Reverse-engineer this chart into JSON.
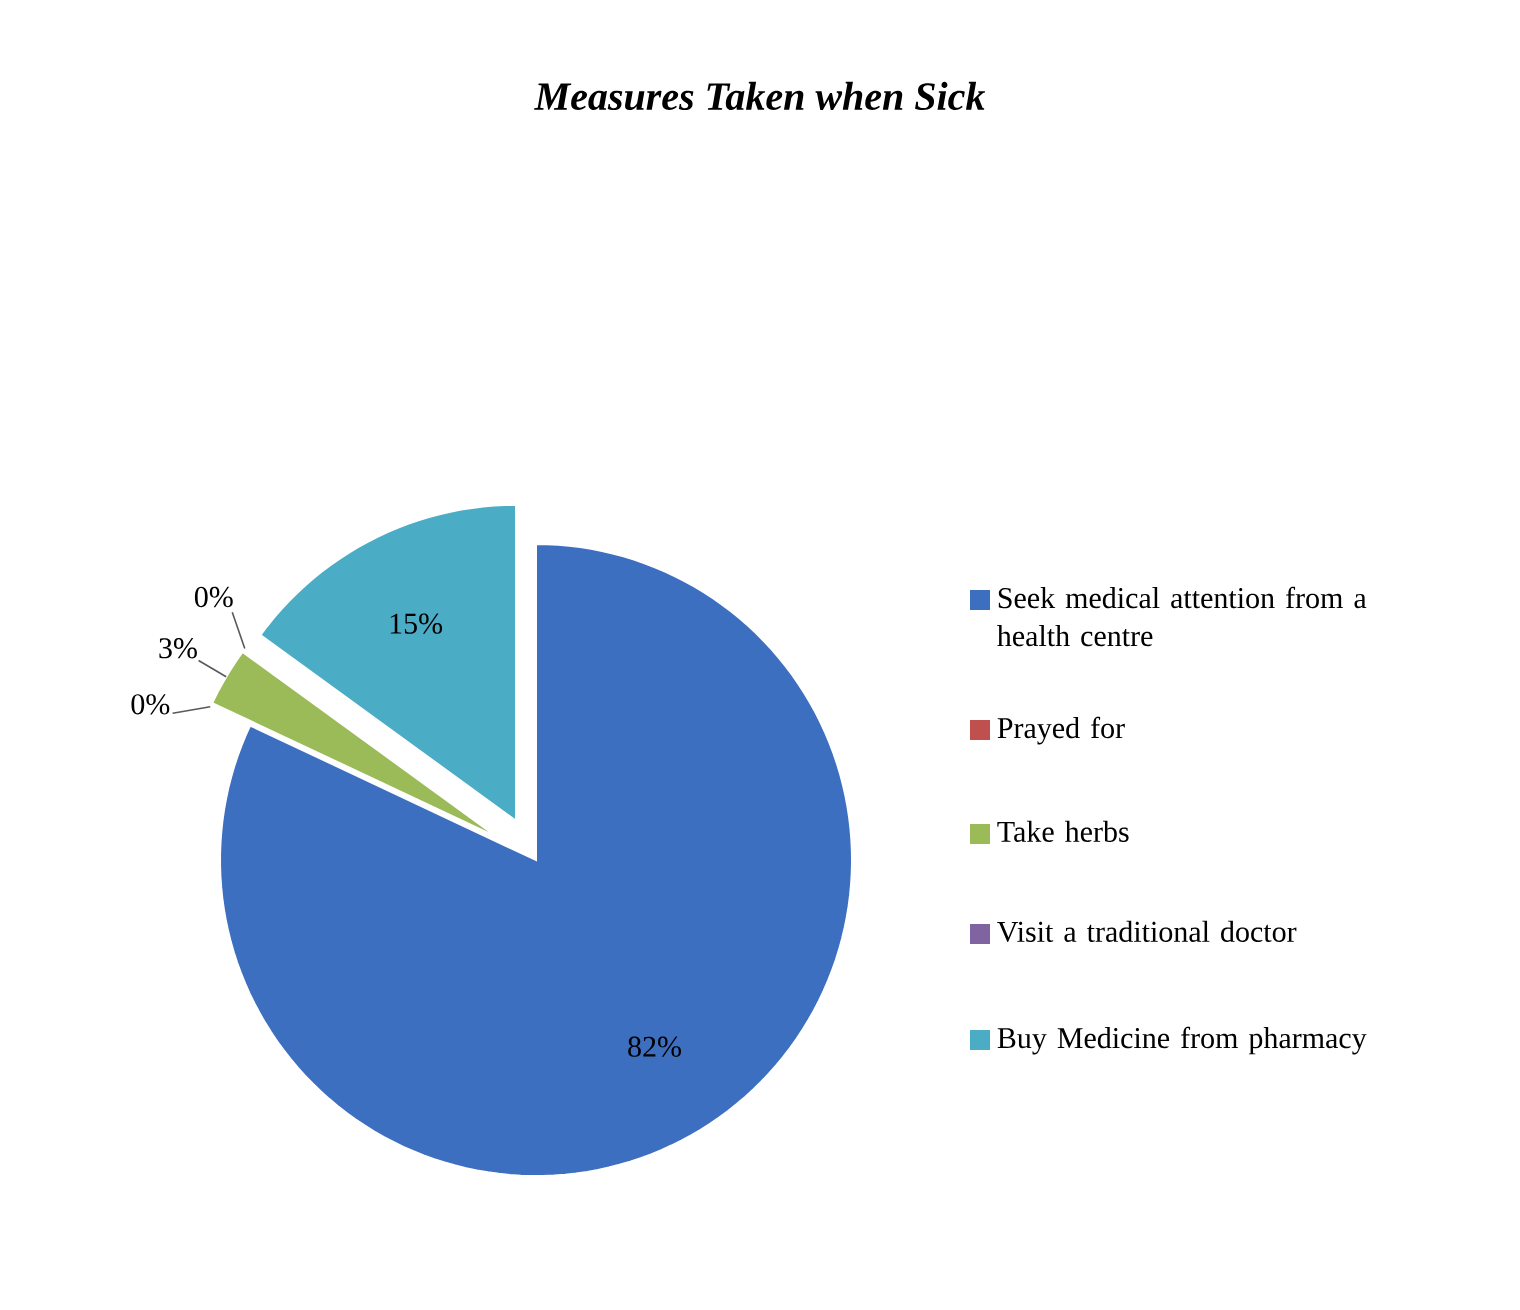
{
  "chart_data": {
    "type": "pie",
    "title": "Measures Taken when Sick",
    "categories": [
      "Seek medical attention from a health centre",
      "Prayed for",
      "Take herbs",
      "Visit a traditional doctor",
      "Buy Medicine from pharmacy"
    ],
    "values": [
      82,
      0,
      3,
      0,
      15
    ],
    "colors": [
      "#3d6fc0",
      "#c0504d",
      "#9bbb59",
      "#8064a2",
      "#4bacc6"
    ],
    "value_labels": [
      "82%",
      "0%",
      "3%",
      "0%",
      "15%"
    ],
    "legend": "right"
  }
}
